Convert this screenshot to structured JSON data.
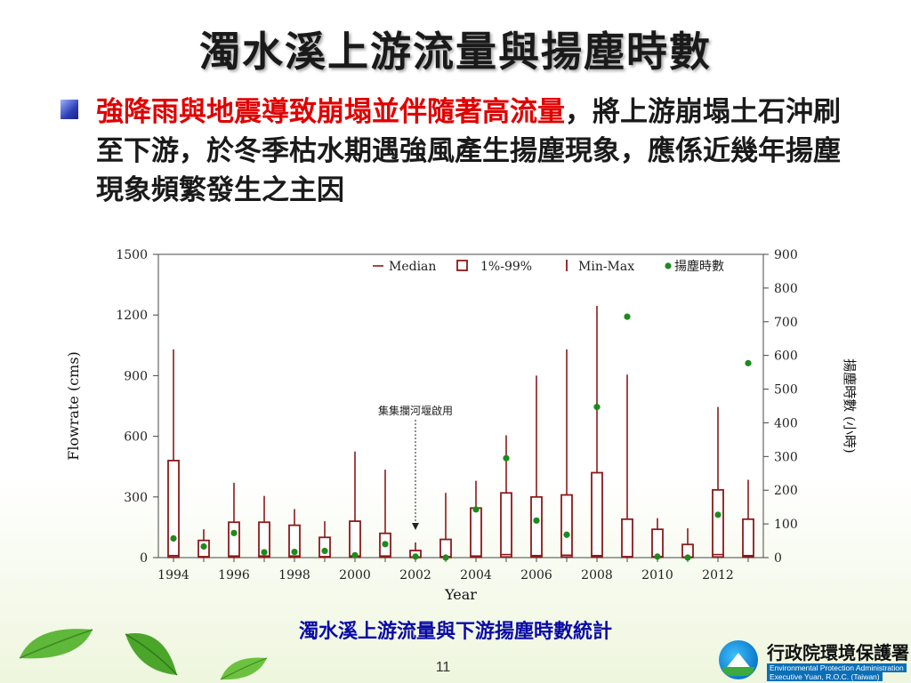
{
  "slide": {
    "title": "濁水溪上游流量與揚塵時數",
    "bullet_highlight": "強降雨與地震導致崩塌並伴隨著高流量",
    "bullet_rest": "，將上游崩塌土石沖刷至下游，於冬季枯水期遇強風產生揚塵現象，應係近幾年揚塵現象頻繁發生之主因",
    "caption": "濁水溪上游流量與下游揚塵時數統計",
    "page_number": "11",
    "logo_cn": "行政院環境保護署",
    "logo_en_line1": "Environmental Protection Administration",
    "logo_en_line2": "Executive Yuan, R.O.C. (Taiwan)"
  },
  "chart_data": {
    "type": "boxplot-with-scatter",
    "xlabel": "Year",
    "ylabel_left": "Flowrate (cms)",
    "ylabel_right": "揚塵時數 (小時)",
    "ylim_left": [
      0,
      1500
    ],
    "yticks_left": [
      0,
      300,
      600,
      900,
      1200,
      1500
    ],
    "ylim_right": [
      0,
      900
    ],
    "yticks_right": [
      0,
      100,
      200,
      300,
      400,
      500,
      600,
      700,
      800,
      900
    ],
    "xticks": [
      1994,
      1996,
      1998,
      2000,
      2002,
      2004,
      2006,
      2008,
      2010,
      2012
    ],
    "legend": [
      "Median",
      "1%-99%",
      "Min-Max",
      "揚塵時數"
    ],
    "legend_position": "top-right",
    "box_color": "#8b1a1a",
    "dot_color": "#1e8a1e",
    "annotation": {
      "text": "集集攔河堰啟用",
      "year": 2002
    },
    "years": [
      1994,
      1995,
      1996,
      1997,
      1998,
      1999,
      2000,
      2001,
      2002,
      2003,
      2004,
      2005,
      2006,
      2007,
      2008,
      2009,
      2010,
      2011,
      2012,
      2013
    ],
    "max": [
      1030,
      140,
      370,
      305,
      240,
      180,
      525,
      435,
      75,
      320,
      380,
      605,
      900,
      1030,
      1245,
      905,
      195,
      145,
      745,
      385
    ],
    "p99": [
      480,
      85,
      175,
      175,
      160,
      100,
      180,
      120,
      35,
      90,
      245,
      320,
      300,
      310,
      420,
      190,
      140,
      65,
      335,
      190
    ],
    "median": [
      10,
      5,
      8,
      8,
      8,
      5,
      8,
      8,
      3,
      5,
      8,
      15,
      10,
      12,
      10,
      5,
      5,
      3,
      15,
      10
    ],
    "p1": [
      2,
      2,
      2,
      2,
      2,
      2,
      2,
      2,
      1,
      1,
      2,
      3,
      3,
      3,
      3,
      2,
      2,
      1,
      3,
      3
    ],
    "min": [
      0,
      0,
      0,
      0,
      0,
      0,
      0,
      0,
      0,
      0,
      0,
      0,
      0,
      0,
      0,
      0,
      0,
      0,
      0,
      0
    ],
    "dust_hours": [
      57,
      33,
      73,
      16,
      17,
      20,
      7,
      40,
      3,
      0,
      143,
      295,
      110,
      68,
      447,
      715,
      3,
      0,
      127,
      577
    ]
  }
}
